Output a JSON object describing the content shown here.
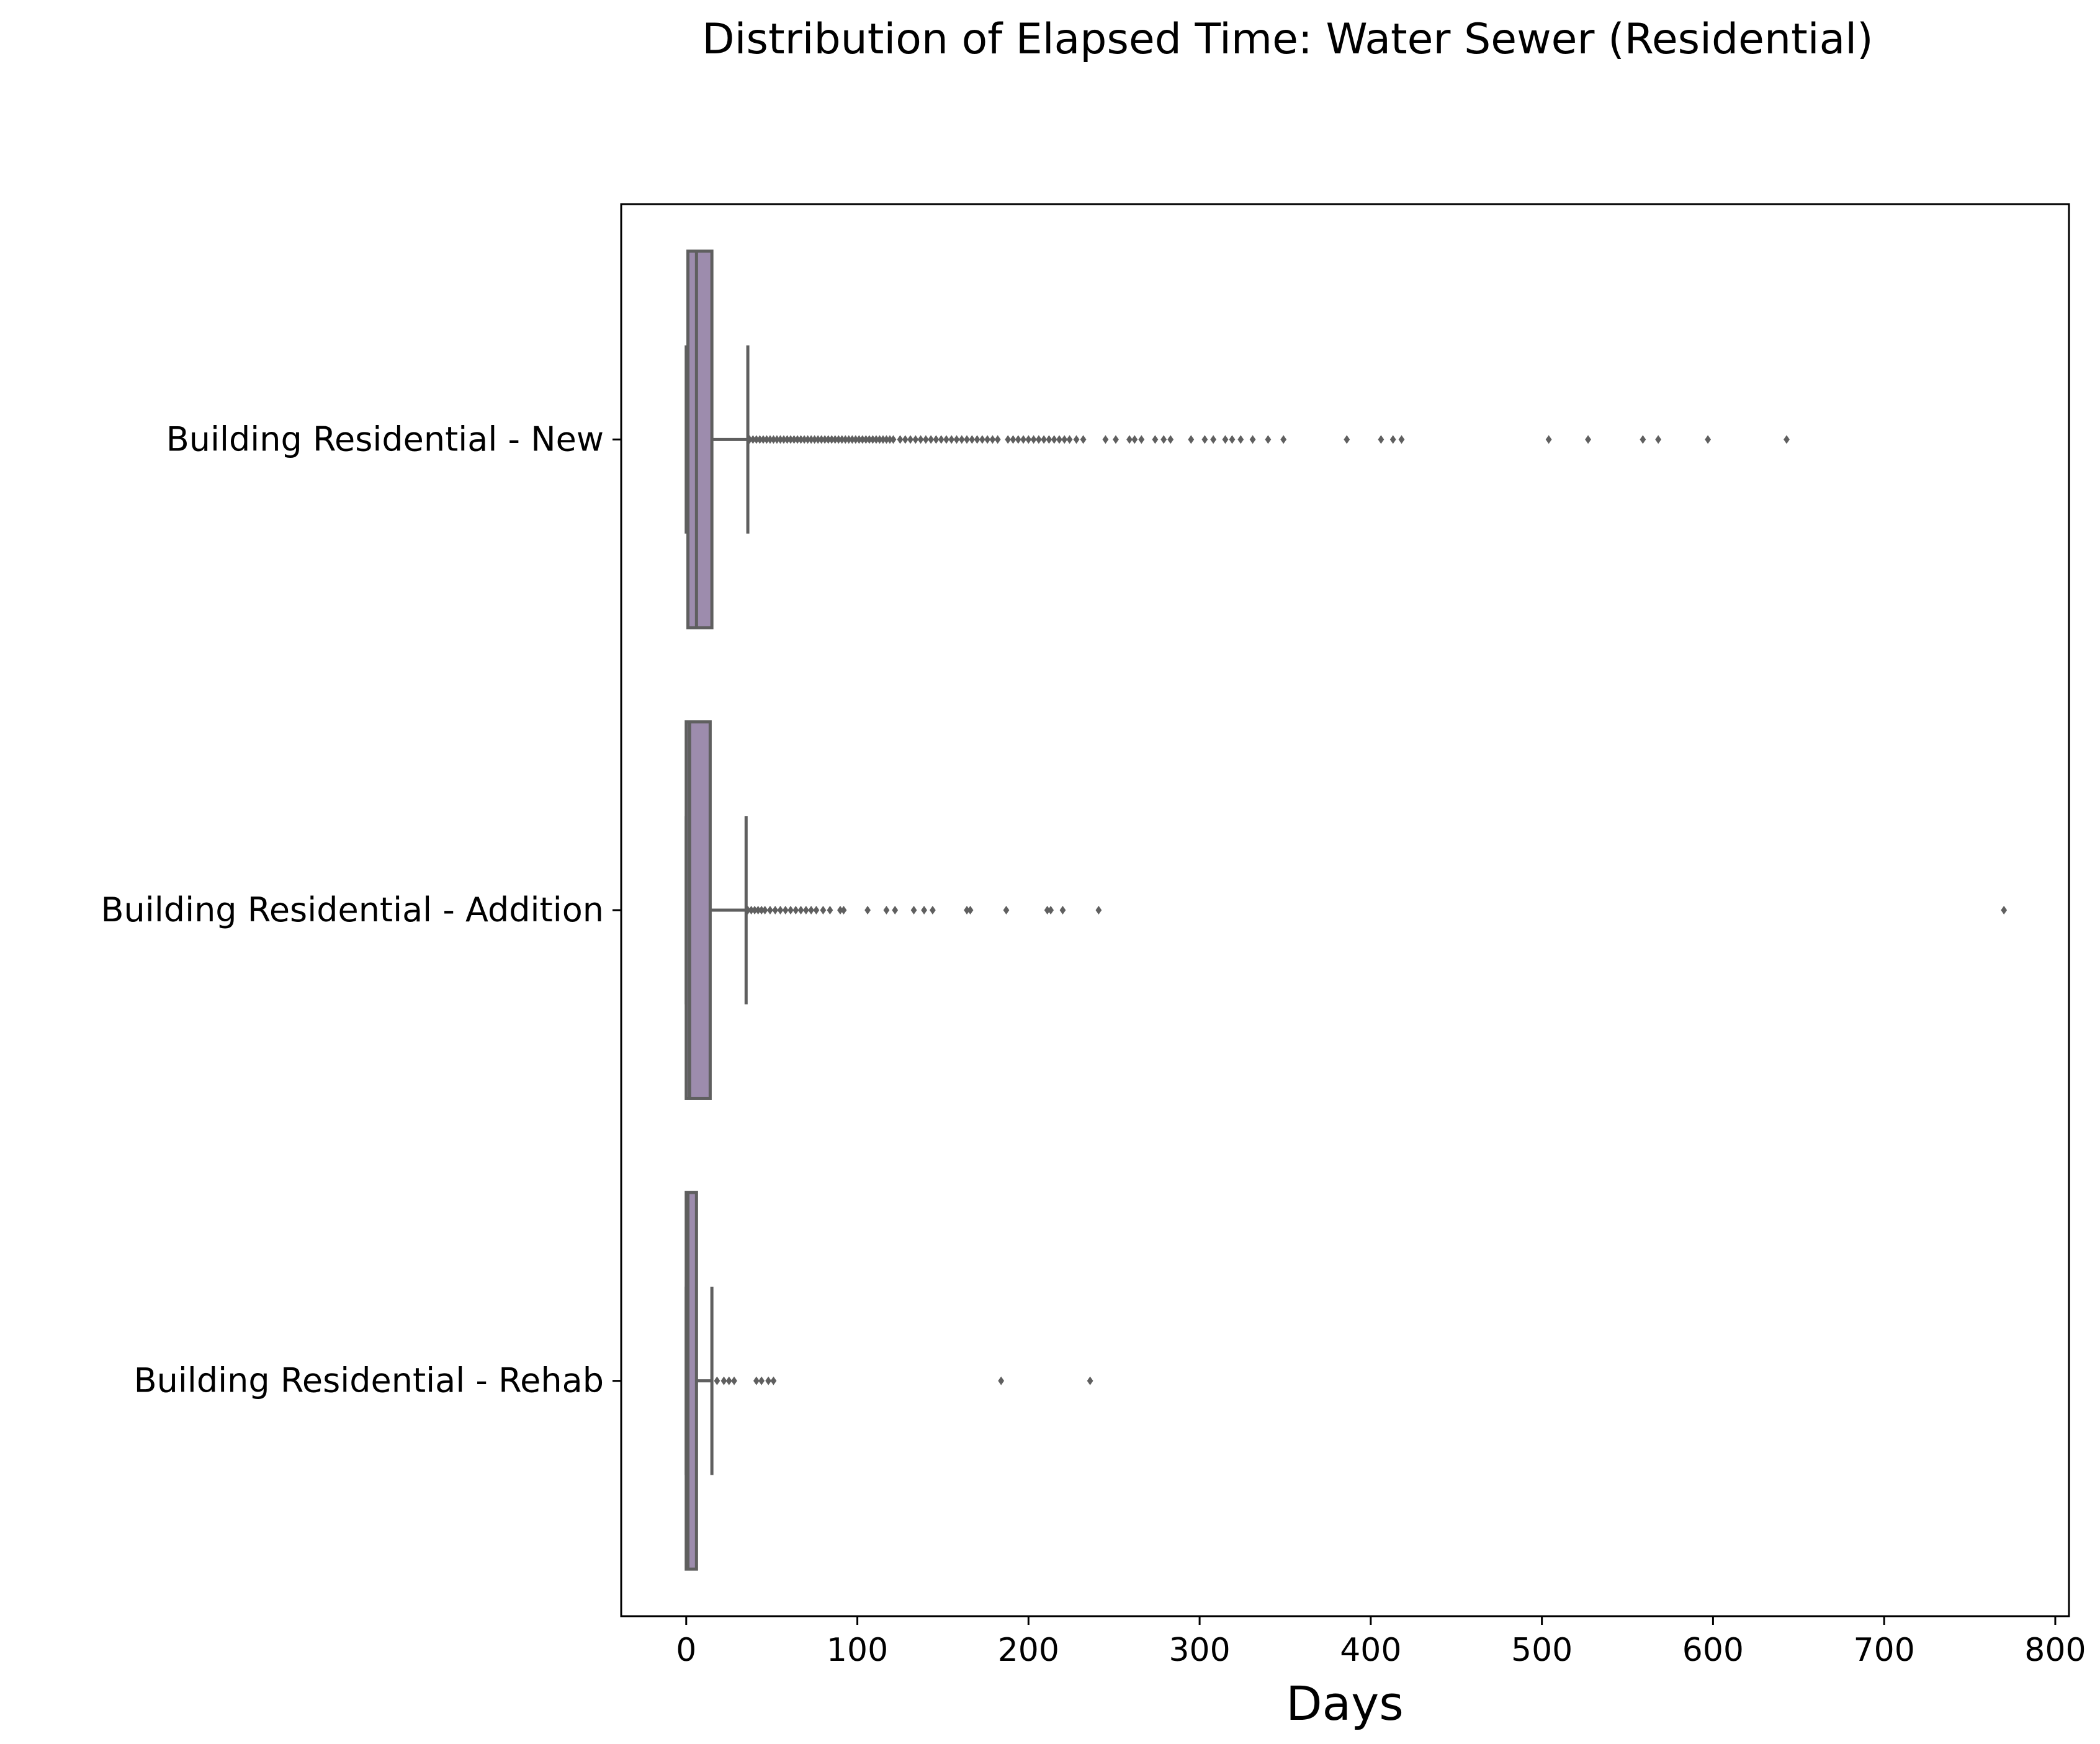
{
  "chart_data": {
    "type": "boxplot",
    "orientation": "horizontal",
    "title": "Distribution of Elapsed Time: Water Sewer (Residential)",
    "xlabel": "Days",
    "ylabel": "",
    "xlim": [
      -38,
      808
    ],
    "xticks": [
      0,
      100,
      200,
      300,
      400,
      500,
      600,
      700,
      800
    ],
    "grid": false,
    "box_color": "#9d8cad",
    "line_color": "#5f5f5f",
    "categories": [
      "Building Residential - New",
      "Building Residential - Addition",
      "Building Residential - Rehab"
    ],
    "boxes": [
      {
        "category": "Building Residential - New",
        "whisker_low": 0,
        "q1": 1,
        "median": 6,
        "q3": 15,
        "whisker_high": 36,
        "outliers": [
          37,
          39,
          41,
          43,
          45,
          47,
          49,
          51,
          53,
          55,
          57,
          59,
          61,
          63,
          65,
          67,
          69,
          71,
          73,
          75,
          77,
          79,
          81,
          83,
          85,
          87,
          89,
          91,
          93,
          95,
          97,
          99,
          101,
          103,
          105,
          107,
          109,
          111,
          113,
          115,
          117,
          119,
          121,
          125,
          128,
          131,
          134,
          137,
          140,
          143,
          146,
          149,
          152,
          155,
          158,
          161,
          164,
          167,
          170,
          173,
          176,
          179,
          182,
          188,
          191,
          194,
          197,
          200,
          203,
          206,
          209,
          212,
          215,
          218,
          221,
          224,
          228,
          232,
          245,
          251,
          259,
          262,
          266,
          274,
          279,
          283,
          295,
          303,
          308,
          315,
          319,
          324,
          331,
          340,
          349,
          386,
          406,
          413,
          418,
          504,
          527,
          559,
          568,
          597,
          643
        ]
      },
      {
        "category": "Building Residential - Addition",
        "whisker_low": 0,
        "q1": 0,
        "median": 2,
        "q3": 14,
        "whisker_high": 35,
        "outliers": [
          36,
          38,
          40,
          42,
          44,
          46,
          49,
          52,
          55,
          58,
          61,
          64,
          67,
          70,
          73,
          76,
          80,
          84,
          90,
          92,
          106,
          117,
          122,
          133,
          139,
          144,
          164,
          166,
          187,
          211,
          213,
          220,
          241,
          770
        ]
      },
      {
        "category": "Building Residential - Rehab",
        "whisker_low": 0,
        "q1": 0,
        "median": 1,
        "q3": 6,
        "whisker_high": 15,
        "outliers": [
          18,
          22,
          25,
          28,
          41,
          44,
          48,
          51,
          184,
          236
        ]
      }
    ]
  }
}
